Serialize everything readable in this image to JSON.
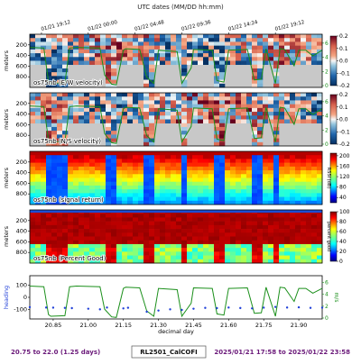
{
  "header": {
    "utc_label": "UTC dates (MM/DD hh:mm)",
    "utc_ticks": [
      "01/21 19:12",
      "01/22 00:00",
      "01/22 04:48",
      "01/22 09:36",
      "01/22 14:24",
      "01/22 19:12"
    ]
  },
  "footer": {
    "range_days": "20.75 to 22.0 (1.25 days)",
    "cruise": "RL2501_CalCOFI",
    "date_range": "2025/01/21 17:58 to 2025/01/22 23:58"
  },
  "colors": {
    "speed_line": "#1a8f1a",
    "heading_points": "#1f3fd8",
    "mask_gray": "#c8c8c8",
    "footer_left": "#6b1a7a",
    "footer_right": "#6b1a7a"
  },
  "chart_data": [
    {
      "type": "heatmap",
      "label": "os75nb (E/W velocity)",
      "ylabel": "meters",
      "y_ticks": [
        "200",
        "400",
        "600",
        "800"
      ],
      "ylim": [
        0,
        1000
      ],
      "colorbar_ticks": [
        "0.2",
        "0.1",
        "0.0",
        "-0.1",
        "-0.2"
      ],
      "colorbar_range": [
        -0.2,
        0.2
      ],
      "colormap": "RdBu_r",
      "right_axis_ticks": [
        "6",
        "4",
        "2",
        "0"
      ],
      "right_axis_label": "m/s"
    },
    {
      "type": "heatmap",
      "label": "os75nb (N/S velocity)",
      "ylabel": "meters",
      "y_ticks": [
        "200",
        "400",
        "600",
        "800"
      ],
      "ylim": [
        0,
        1000
      ],
      "colorbar_ticks": [
        "0.2",
        "0.1",
        "0.0",
        "-0.1",
        "-0.2"
      ],
      "colorbar_range": [
        -0.2,
        0.2
      ],
      "colormap": "RdBu_r",
      "right_axis_ticks": [
        "6",
        "4",
        "2",
        "0"
      ],
      "right_axis_label": "m/s"
    },
    {
      "type": "heatmap",
      "label": "os75nb (signal return)",
      "ylabel": "meters",
      "y_ticks": [
        "200",
        "400",
        "600",
        "800"
      ],
      "ylim": [
        0,
        1000
      ],
      "colorbar_ticks": [
        "200",
        "160",
        "120",
        "80",
        "40"
      ],
      "colorbar_range": [
        20,
        210
      ],
      "colorbar_label": "RSSI (dB)",
      "colormap": "jet"
    },
    {
      "type": "heatmap",
      "label": "os75nb (Percent Good)",
      "ylabel": "meters",
      "y_ticks": [
        "200",
        "400",
        "600",
        "800"
      ],
      "ylim": [
        0,
        1000
      ],
      "colorbar_ticks": [
        "100",
        "80",
        "60",
        "40",
        "20",
        "0"
      ],
      "colorbar_range": [
        0,
        100
      ],
      "colorbar_label": "percent good",
      "colormap": "jet"
    },
    {
      "type": "line",
      "ylabel": "heading",
      "y_ticks": [
        "100",
        "0",
        "-100"
      ],
      "ylim": [
        -180,
        180
      ],
      "right_axis_label": "m/s",
      "right_axis_ticks": [
        "6",
        "4",
        "2",
        "0"
      ],
      "xlabel": "decimal day",
      "x_ticks": [
        "20.85",
        "21.00",
        "21.15",
        "21.30",
        "21.45",
        "21.60",
        "21.75",
        "21.90"
      ],
      "xlim": [
        20.75,
        22.0
      ],
      "series": [
        {
          "name": "speed",
          "axis": "right",
          "x": [
            20.75,
            20.81,
            20.83,
            20.84,
            20.9,
            20.92,
            20.95,
            21.05,
            21.07,
            21.1,
            21.12,
            21.15,
            21.16,
            21.22,
            21.25,
            21.28,
            21.3,
            21.38,
            21.4,
            21.44,
            21.45,
            21.53,
            21.55,
            21.58,
            21.6,
            21.68,
            21.71,
            21.74,
            21.76,
            21.8,
            21.82,
            21.84,
            21.88,
            21.9,
            21.93,
            21.96,
            22.0
          ],
          "values": [
            5.4,
            5.3,
            0.6,
            0.3,
            0.4,
            5.3,
            5.4,
            5.3,
            1.5,
            0.2,
            0.1,
            5.0,
            5.2,
            5.1,
            1.2,
            0.3,
            5.0,
            4.8,
            0.3,
            2.5,
            5.1,
            5.0,
            0.7,
            0.5,
            5.0,
            5.1,
            0.8,
            0.9,
            5.2,
            0.3,
            5.2,
            5.1,
            2.8,
            5.0,
            5.0,
            4.2,
            5.0
          ]
        },
        {
          "name": "heading",
          "axis": "left",
          "x": [
            20.75,
            20.82,
            20.85,
            20.9,
            20.93,
            21.0,
            21.05,
            21.08,
            21.15,
            21.17,
            21.25,
            21.3,
            21.35,
            21.4,
            21.45,
            21.5,
            21.55,
            21.6,
            21.65,
            21.7,
            21.75,
            21.8,
            21.85,
            21.9,
            21.95,
            22.0
          ],
          "values": [
            -82,
            -85,
            -86,
            -88,
            -90,
            -95,
            -100,
            -85,
            -92,
            -87,
            -120,
            -110,
            -100,
            -105,
            -95,
            -88,
            -90,
            -85,
            -89,
            -92,
            -86,
            -80,
            -85,
            -83,
            -88,
            -86
          ]
        }
      ]
    }
  ]
}
